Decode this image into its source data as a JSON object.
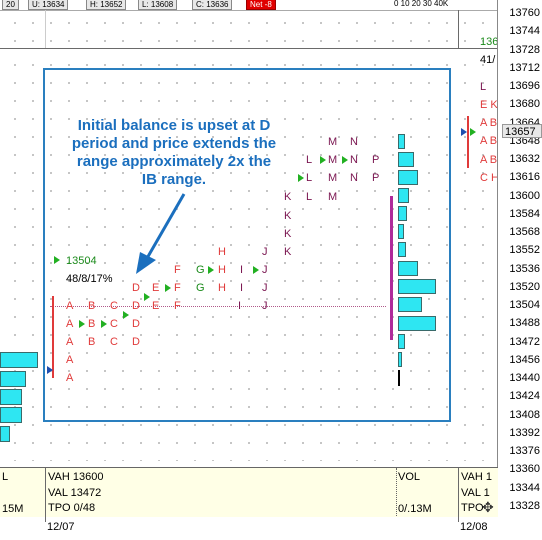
{
  "header": {
    "cells": [
      {
        "text": "20",
        "red": false
      },
      {
        "text": "U: 13634",
        "red": false
      },
      {
        "text": "H: 13652",
        "red": false
      },
      {
        "text": "L: 13608",
        "red": false
      },
      {
        "text": "C: 13636",
        "red": false
      },
      {
        "text": "Net -8",
        "red": true
      }
    ],
    "hist_scale": "0  10  20  30  40K"
  },
  "annotation": {
    "text": "Initial balance is upset at D\nperiod and price extends the\nrange approximately 2x the\nIB range."
  },
  "profile": {
    "open_price": "13504",
    "stats": "48/8/17%",
    "rows": [
      {
        "price": "13632",
        "letters": [
          {
            "l": "L",
            "c": "p"
          },
          {
            "l": "M",
            "c": "p"
          },
          {
            "l": "N",
            "c": "p"
          },
          {
            "l": "P",
            "c": "p"
          }
        ]
      },
      {
        "price": "13616",
        "letters": [
          {
            "l": "L",
            "c": "p"
          },
          {
            "l": "M",
            "c": "p"
          },
          {
            "l": "N",
            "c": "p"
          },
          {
            "l": "P",
            "c": "p"
          }
        ]
      },
      {
        "price": "13648",
        "letters": [
          {
            "l": "M",
            "c": "p"
          },
          {
            "l": "N",
            "c": "p"
          }
        ]
      },
      {
        "price": "13600",
        "letters": [
          {
            "l": "K",
            "c": "p"
          },
          {
            "l": "L",
            "c": "p"
          },
          {
            "l": "M",
            "c": "p"
          }
        ]
      }
    ]
  },
  "right_profile": {
    "letters": [
      "L",
      "E K",
      "A B",
      "A B",
      "A B",
      "C H"
    ],
    "partial_labels": [
      "136",
      "41/"
    ]
  },
  "price_axis": {
    "ticks": [
      "13760",
      "13744",
      "13728",
      "13712",
      "13696",
      "13680",
      "13664",
      "13648",
      "13632",
      "13616",
      "13600",
      "13584",
      "13568",
      "13552",
      "13536",
      "13520",
      "13504",
      "13488",
      "13472",
      "13456",
      "13440",
      "13424",
      "13408",
      "13392",
      "13376",
      "13360",
      "13344",
      "13328"
    ],
    "current": "13657"
  },
  "footer": {
    "left_col": [
      "L",
      "",
      "15M"
    ],
    "mid_col": [
      "VAH 13600",
      "VAL  13472",
      "TPO 0/48"
    ],
    "vol_col": [
      "VOL",
      "",
      "0/.13M"
    ],
    "right_col": [
      "VAH 1",
      "VAL  1",
      "TPO"
    ],
    "dates": [
      "12/07",
      "12/08"
    ]
  },
  "colors": {
    "tpo_red": "#e03a3a",
    "tpo_purple": "#7a1550",
    "tpo_green": "#1a8a1a",
    "frame_blue": "#2a7fbf",
    "hist_cyan": "#2ee6f2",
    "annotation_blue": "#1b6fbe"
  }
}
